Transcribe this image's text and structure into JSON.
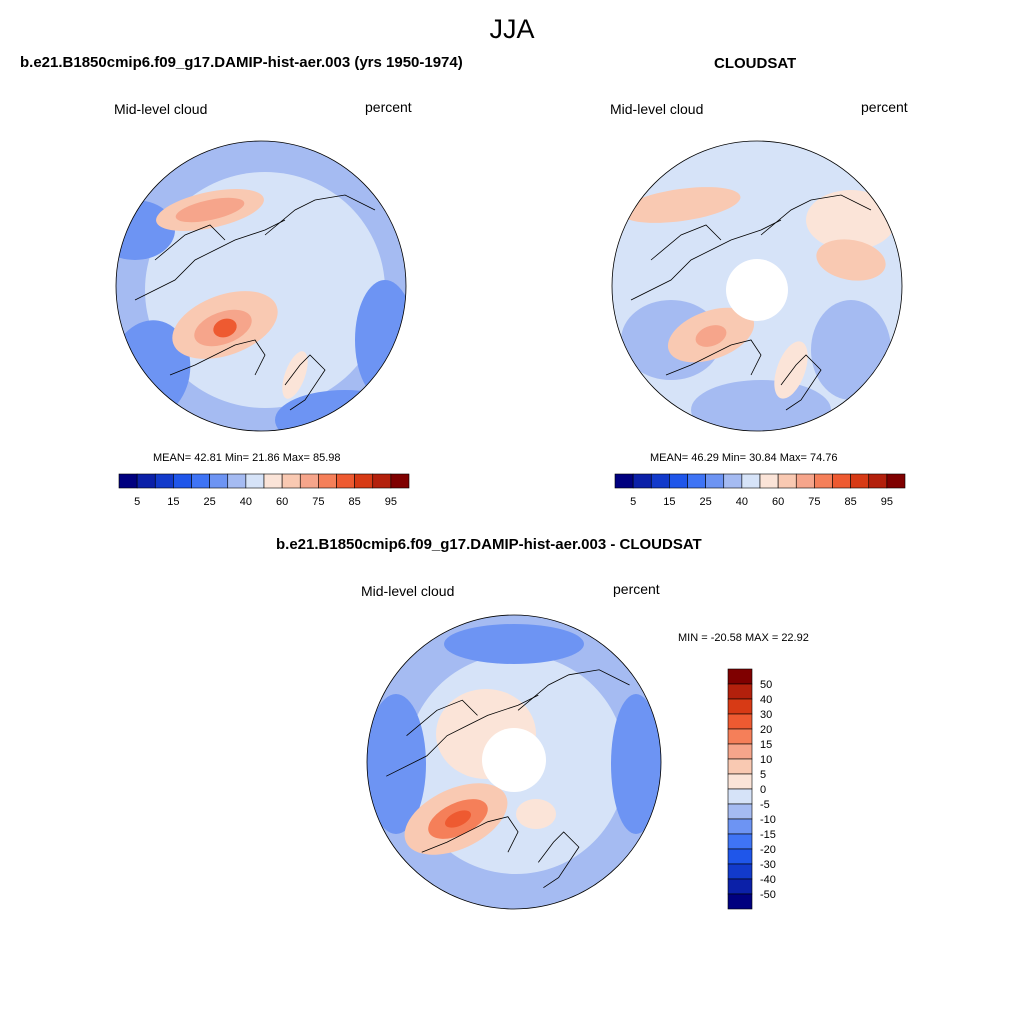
{
  "season": "JJA",
  "colors": {
    "map_scale": [
      "#00007f",
      "#0b20a8",
      "#123acb",
      "#1f56ea",
      "#3f74f5",
      "#6d94f3",
      "#a5bbf2",
      "#d6e3f8",
      "#fbe4d8",
      "#f9c9b2",
      "#f6a58b",
      "#f57f59",
      "#ee5a31",
      "#d73a15",
      "#b3200c",
      "#7f0000"
    ],
    "diff_scale": [
      "#00007f",
      "#0b20a8",
      "#123acb",
      "#1f56ea",
      "#3f74f5",
      "#6d94f3",
      "#a5bbf2",
      "#d6e3f8",
      "#fbe4d8",
      "#f9c9b2",
      "#f6a58b",
      "#f57f59",
      "#ee5a31",
      "#d73a15",
      "#b3200c",
      "#7f0000"
    ],
    "coastline": "#000000"
  },
  "panels": {
    "model": {
      "title": "b.e21.B1850cmip6.f09_g17.DAMIP-hist-aer.003 (yrs 1950-1974)",
      "variable": "Mid-level cloud",
      "units": "percent",
      "mean_label": "MEAN=",
      "mean": "42.81",
      "min_label": "Min=",
      "min": "21.86",
      "max_label": "Max=",
      "max": "85.98"
    },
    "obs": {
      "title": "CLOUDSAT",
      "variable": "Mid-level cloud",
      "units": "percent",
      "mean_label": "MEAN=",
      "mean": "46.29",
      "min_label": "Min=",
      "min": "30.84",
      "max_label": "Max=",
      "max": "74.76"
    },
    "diff": {
      "title": "b.e21.B1850cmip6.f09_g17.DAMIP-hist-aer.003 - CLOUDSAT",
      "variable": "Mid-level cloud",
      "units": "percent",
      "minmax_text": "MIN = -20.58 MAX =  22.92"
    }
  },
  "colorbar_levels": [
    "5",
    "15",
    "25",
    "40",
    "60",
    "75",
    "85",
    "95"
  ],
  "diff_colorbar_levels": [
    "50",
    "40",
    "30",
    "20",
    "15",
    "10",
    "5",
    "0",
    "-5",
    "-10",
    "-15",
    "-20",
    "-30",
    "-40",
    "-50"
  ]
}
